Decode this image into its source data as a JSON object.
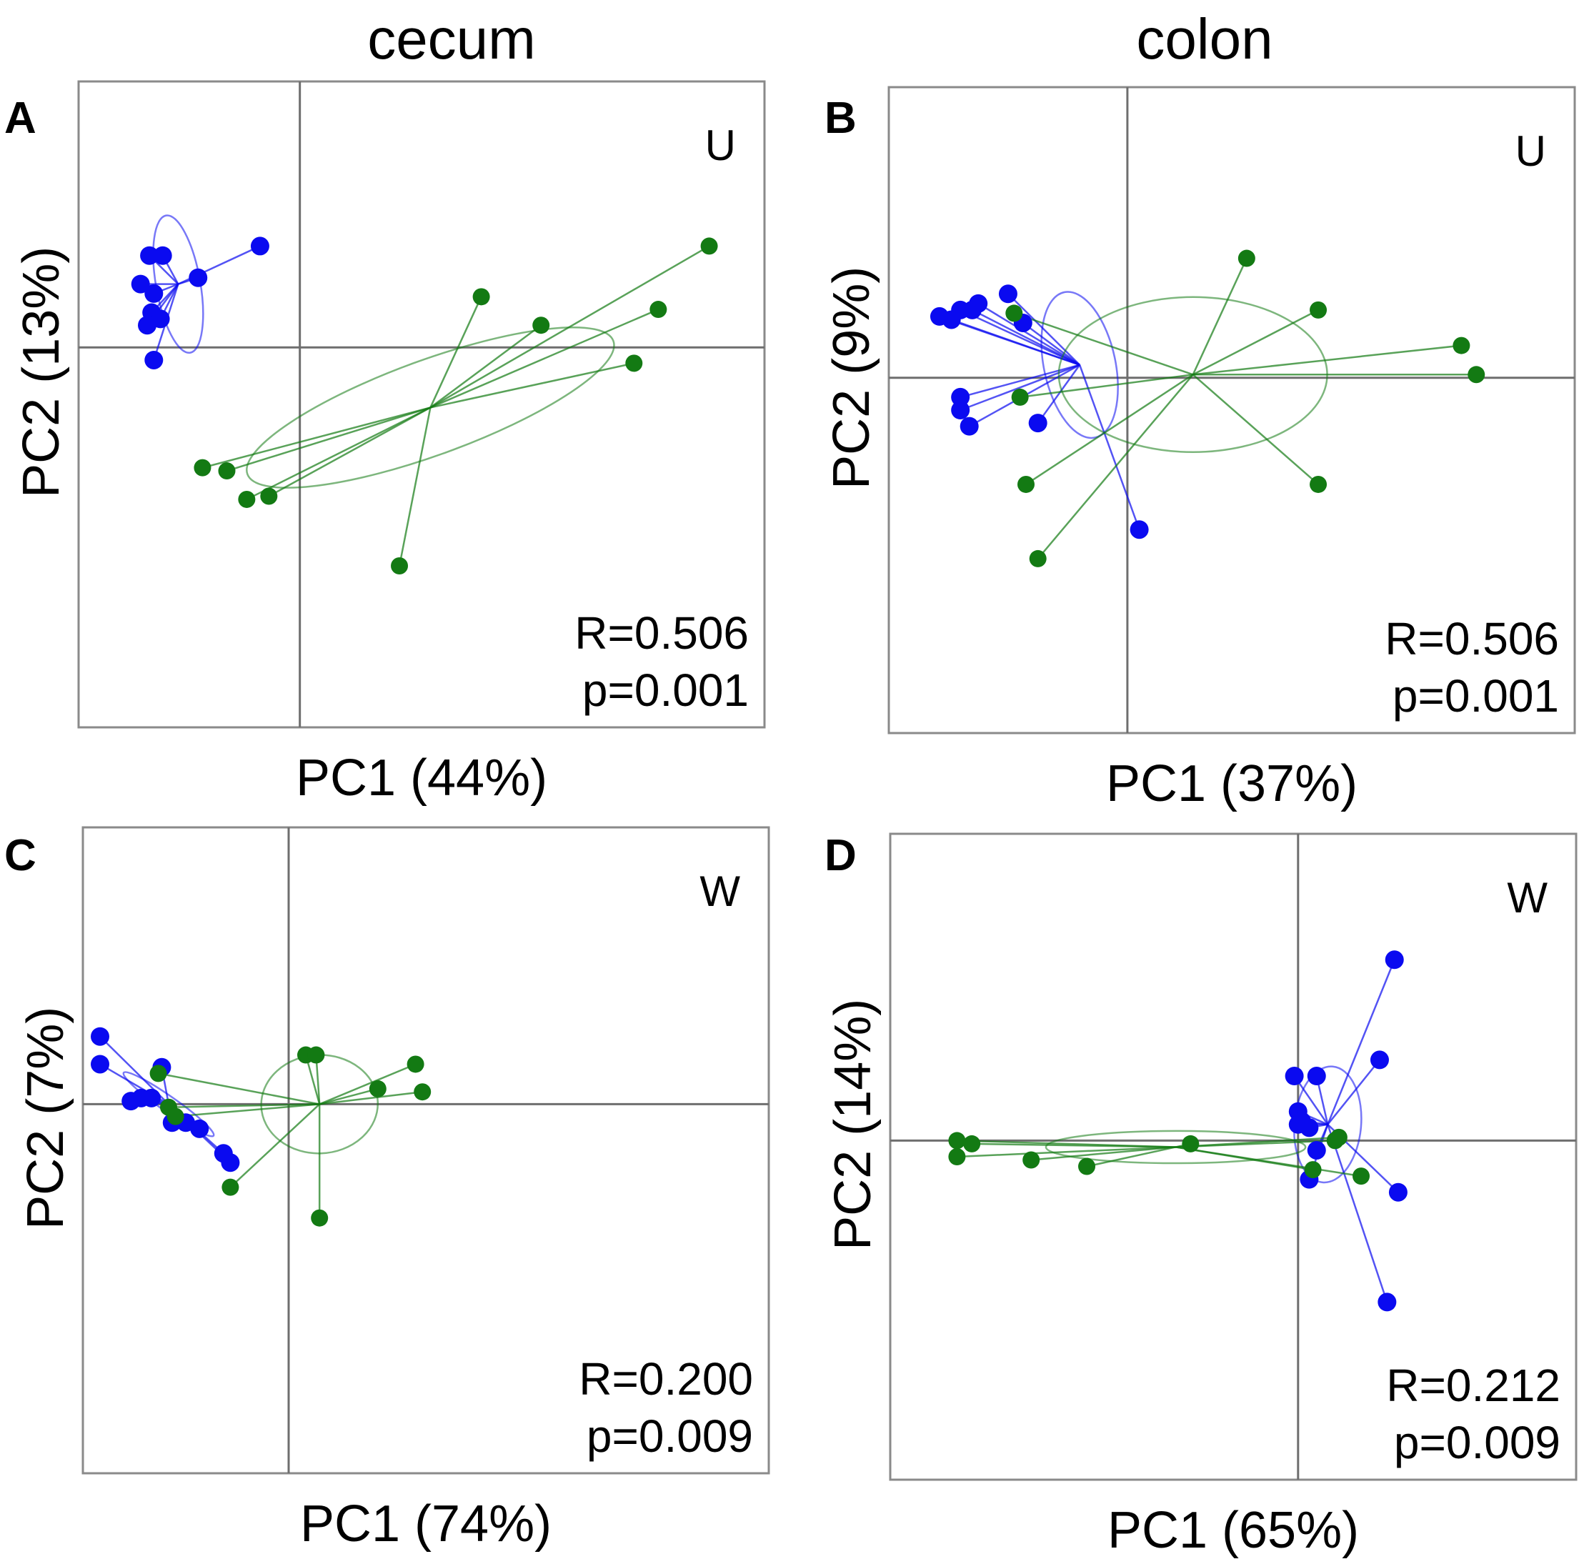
{
  "column_titles": [
    "cecum",
    "colon"
  ],
  "colors": {
    "group1": "#0a0af0",
    "group2": "#137a13",
    "axis": "#6e6e6e",
    "frame": "#8a8a8a"
  },
  "chart_data": [
    {
      "type": "scatter",
      "panel_label": "A",
      "column": "cecum",
      "title": "U",
      "xlabel": "PC1 (44%)",
      "ylabel": "PC2 (13%)",
      "xlim": [
        -1.0,
        2.1
      ],
      "ylim": [
        -1.2,
        0.84
      ],
      "stats": {
        "R": "R=0.506",
        "p": "p=0.001"
      },
      "series": [
        {
          "name": "group1",
          "color": "#0a0af0",
          "centroid": [
            -0.55,
            0.2
          ],
          "ellipse": {
            "rx": 0.1,
            "ry": 0.22,
            "angle": -10
          },
          "points": [
            [
              -0.68,
              0.29
            ],
            [
              -0.62,
              0.29
            ],
            [
              -0.72,
              0.2
            ],
            [
              -0.66,
              0.17
            ],
            [
              -0.46,
              0.22
            ],
            [
              -0.67,
              0.11
            ],
            [
              -0.63,
              0.09
            ],
            [
              -0.69,
              0.07
            ],
            [
              -0.66,
              -0.04
            ],
            [
              -0.18,
              0.32
            ]
          ]
        },
        {
          "name": "group2",
          "color": "#137a13",
          "centroid": [
            0.59,
            -0.19
          ],
          "ellipse": {
            "rx": 0.88,
            "ry": 0.15,
            "angle": -20
          },
          "points": [
            [
              -0.44,
              -0.38
            ],
            [
              -0.33,
              -0.39
            ],
            [
              -0.24,
              -0.48
            ],
            [
              -0.14,
              -0.47
            ],
            [
              0.45,
              -0.69
            ],
            [
              0.82,
              0.16
            ],
            [
              1.09,
              0.07
            ],
            [
              1.51,
              -0.05
            ],
            [
              1.62,
              0.12
            ],
            [
              1.85,
              0.32
            ]
          ]
        }
      ]
    },
    {
      "type": "scatter",
      "panel_label": "B",
      "column": "colon",
      "title": "U",
      "xlabel": "PC1 (37%)",
      "ylabel": "PC2 (9%)",
      "xlim": [
        -0.8,
        1.5
      ],
      "ylim": [
        -1.1,
        0.9
      ],
      "stats": {
        "R": "R=0.506",
        "p": "p=0.001"
      },
      "series": [
        {
          "name": "group1",
          "color": "#0a0af0",
          "centroid": [
            -0.16,
            0.04
          ],
          "ellipse": {
            "rx": 0.12,
            "ry": 0.23,
            "angle": -12
          },
          "points": [
            [
              -0.63,
              0.19
            ],
            [
              -0.59,
              0.18
            ],
            [
              -0.56,
              0.21
            ],
            [
              -0.5,
              0.23
            ],
            [
              -0.52,
              0.21
            ],
            [
              -0.4,
              0.26
            ],
            [
              -0.35,
              0.17
            ],
            [
              -0.56,
              -0.1
            ],
            [
              -0.53,
              -0.15
            ],
            [
              -0.56,
              -0.06
            ],
            [
              -0.3,
              -0.14
            ],
            [
              0.04,
              -0.47
            ]
          ]
        },
        {
          "name": "group2",
          "color": "#137a13",
          "centroid": [
            0.22,
            0.01
          ],
          "ellipse": {
            "rx": 0.45,
            "ry": 0.24,
            "angle": 0
          },
          "points": [
            [
              -0.38,
              0.2
            ],
            [
              -0.36,
              -0.06
            ],
            [
              -0.34,
              -0.33
            ],
            [
              -0.3,
              -0.56
            ],
            [
              0.4,
              0.37
            ],
            [
              0.64,
              0.21
            ],
            [
              0.64,
              -0.33
            ],
            [
              1.12,
              0.1
            ],
            [
              1.17,
              0.01
            ]
          ]
        }
      ]
    },
    {
      "type": "scatter",
      "panel_label": "C",
      "column": "cecum",
      "title": "W",
      "xlabel": "PC1 (74%)",
      "ylabel": "PC2 (7%)",
      "xlim": [
        -0.6,
        1.4
      ],
      "ylim": [
        -1.2,
        0.9
      ],
      "stats": {
        "R": "R=0.200",
        "p": "p=0.009"
      },
      "series": [
        {
          "name": "group1",
          "color": "#0a0af0",
          "centroid": [
            -0.35,
            0.0
          ],
          "ellipse": {
            "rx": 0.16,
            "ry": 0.025,
            "angle": 35
          },
          "points": [
            [
              -0.55,
              0.22
            ],
            [
              -0.55,
              0.13
            ],
            [
              -0.46,
              0.01
            ],
            [
              -0.43,
              0.02
            ],
            [
              -0.4,
              0.02
            ],
            [
              -0.37,
              0.12
            ],
            [
              -0.34,
              -0.06
            ],
            [
              -0.3,
              -0.06
            ],
            [
              -0.26,
              -0.08
            ],
            [
              -0.19,
              -0.16
            ],
            [
              -0.17,
              -0.19
            ]
          ]
        },
        {
          "name": "group2",
          "color": "#137a13",
          "centroid": [
            0.09,
            0.0
          ],
          "ellipse": {
            "rx": 0.17,
            "ry": 0.16,
            "angle": -2
          },
          "points": [
            [
              -0.38,
              0.1
            ],
            [
              -0.35,
              -0.01
            ],
            [
              -0.33,
              -0.04
            ],
            [
              -0.17,
              -0.27
            ],
            [
              0.05,
              0.16
            ],
            [
              0.08,
              0.16
            ],
            [
              0.09,
              -0.37
            ],
            [
              0.26,
              0.05
            ],
            [
              0.37,
              0.13
            ],
            [
              0.39,
              0.04
            ]
          ]
        }
      ]
    },
    {
      "type": "scatter",
      "panel_label": "D",
      "column": "colon",
      "title": "W",
      "xlabel": "PC1 (65%)",
      "ylabel": "PC2 (14%)",
      "xlim": [
        -1.1,
        0.75
      ],
      "ylim": [
        -1.05,
        0.95
      ],
      "stats": {
        "R": "R=0.212",
        "p": "p=0.009"
      },
      "series": [
        {
          "name": "group1",
          "color": "#0a0af0",
          "centroid": [
            0.08,
            0.05
          ],
          "ellipse": {
            "rx": 0.09,
            "ry": 0.18,
            "angle": 5
          },
          "points": [
            [
              -0.01,
              0.2
            ],
            [
              0.0,
              0.09
            ],
            [
              0.0,
              0.05
            ],
            [
              0.01,
              0.06
            ],
            [
              0.03,
              0.04
            ],
            [
              0.05,
              0.2
            ],
            [
              0.05,
              -0.03
            ],
            [
              0.03,
              -0.12
            ],
            [
              0.22,
              0.25
            ],
            [
              0.26,
              0.56
            ],
            [
              0.27,
              -0.16
            ],
            [
              0.24,
              -0.5
            ]
          ]
        },
        {
          "name": "group2",
          "color": "#137a13",
          "centroid": [
            -0.33,
            -0.02
          ],
          "ellipse": {
            "rx": 0.35,
            "ry": 0.05,
            "angle": 0
          },
          "points": [
            [
              -0.92,
              0.0
            ],
            [
              -0.88,
              -0.01
            ],
            [
              -0.92,
              -0.05
            ],
            [
              -0.72,
              -0.06
            ],
            [
              -0.57,
              -0.08
            ],
            [
              -0.29,
              -0.01
            ],
            [
              0.04,
              -0.09
            ],
            [
              0.1,
              0.0
            ],
            [
              0.11,
              0.01
            ],
            [
              0.17,
              -0.11
            ]
          ]
        }
      ]
    }
  ]
}
